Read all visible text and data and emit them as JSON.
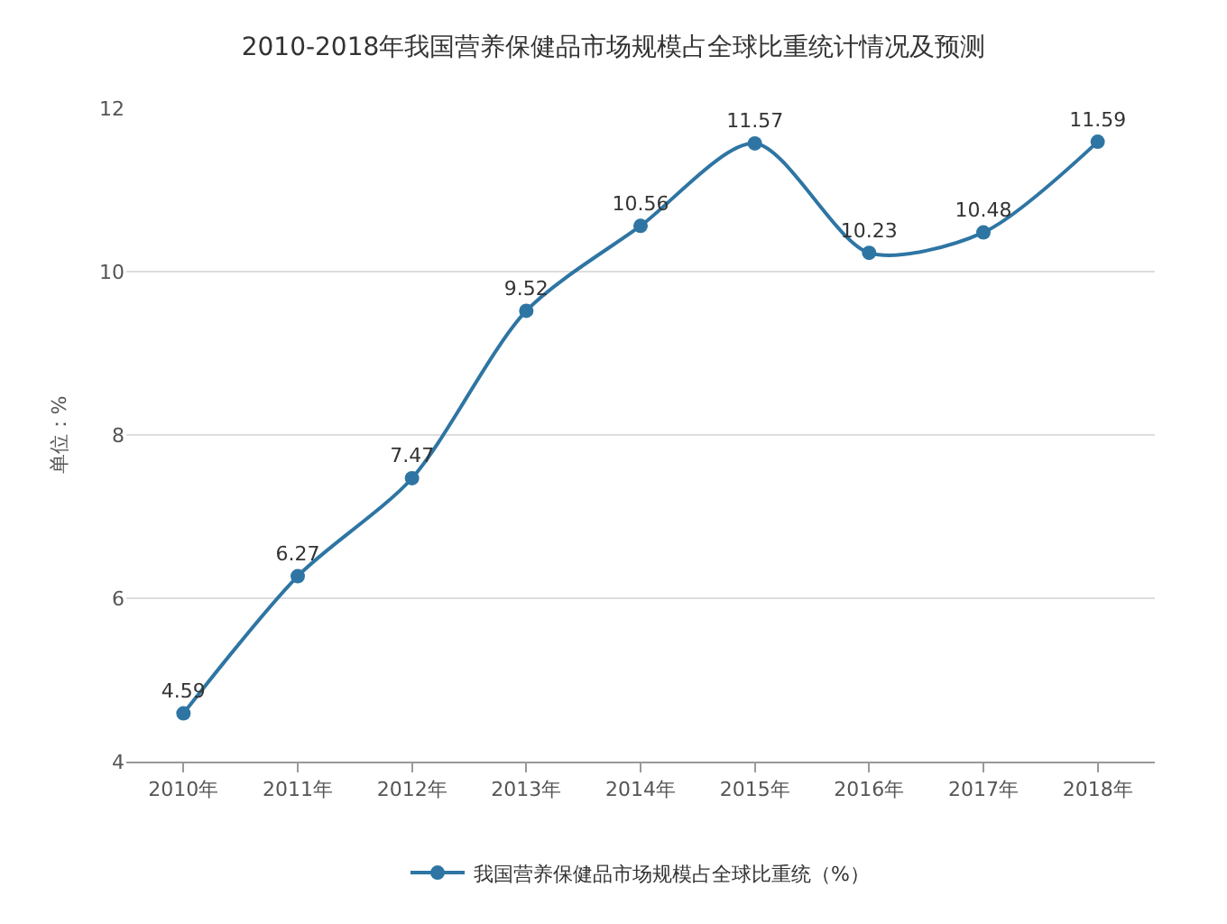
{
  "chart_data": {
    "type": "line",
    "title": "2010-2018年我国营养保健品市场规模占全球比重统计情况及预测",
    "ylabel": "单位：%",
    "categories": [
      "2010年",
      "2011年",
      "2012年",
      "2013年",
      "2014年",
      "2015年",
      "2016年",
      "2017年",
      "2018年"
    ],
    "series": [
      {
        "name": "我国营养保健品市场规模占全球比重统（%）",
        "color": "#2e75a3",
        "values": [
          4.59,
          6.27,
          7.47,
          9.52,
          10.56,
          11.57,
          10.23,
          10.48,
          11.59
        ]
      }
    ],
    "ylim": [
      4,
      12
    ],
    "yticks": [
      4,
      6,
      8,
      10,
      12
    ],
    "grid": "y",
    "legend": "bottom",
    "marker": "circle",
    "line_style": "solid",
    "data_labels": true
  }
}
